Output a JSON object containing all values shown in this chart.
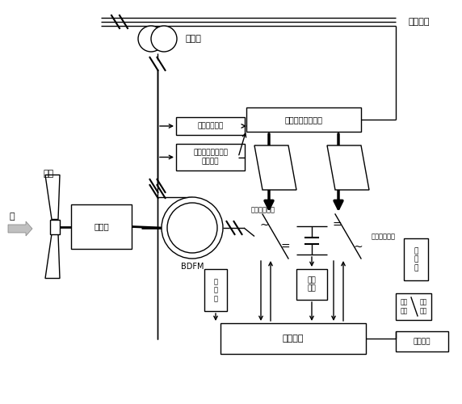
{
  "background": "#ffffff",
  "labels": {
    "grid": "电网系统",
    "transformer": "变压器",
    "speed_input": "电机转速输入",
    "winding_input": "电机绕组电压电流\n参数输入",
    "variable_speed": "变速恒频运行系统",
    "motor_side_label": "电机侧变流器",
    "grid_side_label": "电网侧变流器",
    "voltage_detect": "电压\n检测",
    "control": "控制系统",
    "protection": "保护系统",
    "blade": "叶片",
    "wind": "风",
    "gearbox": "增速算",
    "bdfm": "BDFM",
    "speed_sensor": "速\n度\n器",
    "filter": "滤\n波\n器",
    "supercond": "超导\n线圈",
    "cooling": "制冷\n系统"
  },
  "colors": {
    "black": "#000000",
    "white": "#ffffff",
    "gray_arrow": "#999999"
  }
}
